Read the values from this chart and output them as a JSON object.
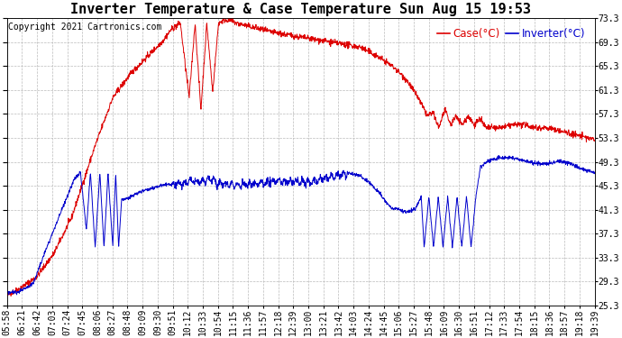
{
  "title": "Inverter Temperature & Case Temperature Sun Aug 15 19:53",
  "copyright": "Copyright 2021 Cartronics.com",
  "legend_case": "Case(°C)",
  "legend_inverter": "Inverter(°C)",
  "ymin": 25.3,
  "ymax": 73.3,
  "ytick_step": 4,
  "background_color": "#ffffff",
  "grid_color": "#bbbbbb",
  "case_color": "#dd0000",
  "inverter_color": "#0000cc",
  "title_fontsize": 11,
  "copyright_fontsize": 7,
  "tick_fontsize": 7,
  "legend_fontsize": 8.5,
  "xtick_labels": [
    "05:58",
    "06:21",
    "06:42",
    "07:03",
    "07:24",
    "07:45",
    "08:06",
    "08:27",
    "08:48",
    "09:09",
    "09:30",
    "09:51",
    "10:12",
    "10:33",
    "10:54",
    "11:15",
    "11:36",
    "11:57",
    "12:18",
    "12:39",
    "13:00",
    "13:21",
    "13:42",
    "14:03",
    "14:24",
    "14:45",
    "15:06",
    "15:27",
    "15:48",
    "16:09",
    "16:30",
    "16:51",
    "17:12",
    "17:33",
    "17:54",
    "18:15",
    "18:36",
    "18:57",
    "19:18",
    "19:39"
  ],
  "case_keypoints": [
    [
      0.0,
      27.0
    ],
    [
      0.02,
      28.0
    ],
    [
      0.05,
      30.0
    ],
    [
      0.08,
      34.0
    ],
    [
      0.11,
      40.0
    ],
    [
      0.15,
      52.0
    ],
    [
      0.18,
      60.0
    ],
    [
      0.21,
      64.0
    ],
    [
      0.24,
      67.0
    ],
    [
      0.265,
      69.5
    ],
    [
      0.28,
      71.5
    ],
    [
      0.295,
      72.5
    ],
    [
      0.31,
      60.0
    ],
    [
      0.32,
      72.5
    ],
    [
      0.33,
      58.0
    ],
    [
      0.34,
      72.5
    ],
    [
      0.35,
      61.0
    ],
    [
      0.36,
      72.5
    ],
    [
      0.37,
      73.0
    ],
    [
      0.38,
      73.0
    ],
    [
      0.39,
      72.5
    ],
    [
      0.41,
      72.0
    ],
    [
      0.43,
      71.5
    ],
    [
      0.45,
      71.0
    ],
    [
      0.48,
      70.5
    ],
    [
      0.51,
      70.0
    ],
    [
      0.54,
      69.5
    ],
    [
      0.57,
      69.0
    ],
    [
      0.6,
      68.5
    ],
    [
      0.63,
      67.0
    ],
    [
      0.66,
      65.0
    ],
    [
      0.68,
      63.0
    ],
    [
      0.7,
      60.0
    ],
    [
      0.715,
      57.0
    ],
    [
      0.725,
      57.5
    ],
    [
      0.735,
      55.0
    ],
    [
      0.745,
      58.0
    ],
    [
      0.755,
      55.5
    ],
    [
      0.765,
      57.0
    ],
    [
      0.775,
      55.5
    ],
    [
      0.785,
      57.0
    ],
    [
      0.795,
      55.5
    ],
    [
      0.805,
      56.5
    ],
    [
      0.815,
      55.0
    ],
    [
      0.825,
      55.0
    ],
    [
      0.84,
      55.0
    ],
    [
      0.86,
      55.5
    ],
    [
      0.88,
      55.5
    ],
    [
      0.9,
      55.0
    ],
    [
      0.92,
      55.0
    ],
    [
      0.94,
      54.5
    ],
    [
      0.96,
      54.0
    ],
    [
      0.98,
      53.5
    ],
    [
      1.0,
      53.0
    ]
  ],
  "inverter_keypoints": [
    [
      0.0,
      27.5
    ],
    [
      0.02,
      27.5
    ],
    [
      0.045,
      29.0
    ],
    [
      0.06,
      33.0
    ],
    [
      0.08,
      38.0
    ],
    [
      0.1,
      43.0
    ],
    [
      0.115,
      46.5
    ],
    [
      0.125,
      47.5
    ],
    [
      0.135,
      38.0
    ],
    [
      0.142,
      47.5
    ],
    [
      0.15,
      35.0
    ],
    [
      0.158,
      47.5
    ],
    [
      0.165,
      35.0
    ],
    [
      0.172,
      47.5
    ],
    [
      0.18,
      35.0
    ],
    [
      0.185,
      47.5
    ],
    [
      0.19,
      35.0
    ],
    [
      0.195,
      43.0
    ],
    [
      0.2,
      43.0
    ],
    [
      0.22,
      44.0
    ],
    [
      0.25,
      45.0
    ],
    [
      0.27,
      45.5
    ],
    [
      0.29,
      45.5
    ],
    [
      0.31,
      46.0
    ],
    [
      0.33,
      46.0
    ],
    [
      0.345,
      46.5
    ],
    [
      0.36,
      45.5
    ],
    [
      0.38,
      45.5
    ],
    [
      0.4,
      45.5
    ],
    [
      0.42,
      45.5
    ],
    [
      0.44,
      46.0
    ],
    [
      0.46,
      46.0
    ],
    [
      0.48,
      46.0
    ],
    [
      0.5,
      46.0
    ],
    [
      0.52,
      46.0
    ],
    [
      0.54,
      46.5
    ],
    [
      0.56,
      47.0
    ],
    [
      0.58,
      47.5
    ],
    [
      0.6,
      47.0
    ],
    [
      0.62,
      45.5
    ],
    [
      0.635,
      44.0
    ],
    [
      0.645,
      42.5
    ],
    [
      0.655,
      41.5
    ],
    [
      0.665,
      41.5
    ],
    [
      0.675,
      41.0
    ],
    [
      0.685,
      41.0
    ],
    [
      0.695,
      41.5
    ],
    [
      0.705,
      43.5
    ],
    [
      0.71,
      35.0
    ],
    [
      0.718,
      43.5
    ],
    [
      0.726,
      35.0
    ],
    [
      0.734,
      43.5
    ],
    [
      0.742,
      35.0
    ],
    [
      0.75,
      43.5
    ],
    [
      0.758,
      35.0
    ],
    [
      0.766,
      43.5
    ],
    [
      0.774,
      35.0
    ],
    [
      0.782,
      43.5
    ],
    [
      0.79,
      35.0
    ],
    [
      0.798,
      43.5
    ],
    [
      0.806,
      48.5
    ],
    [
      0.82,
      49.5
    ],
    [
      0.84,
      50.0
    ],
    [
      0.86,
      50.0
    ],
    [
      0.88,
      49.5
    ],
    [
      0.9,
      49.0
    ],
    [
      0.92,
      49.0
    ],
    [
      0.94,
      49.5
    ],
    [
      0.96,
      49.0
    ],
    [
      0.98,
      48.0
    ],
    [
      1.0,
      47.5
    ]
  ]
}
